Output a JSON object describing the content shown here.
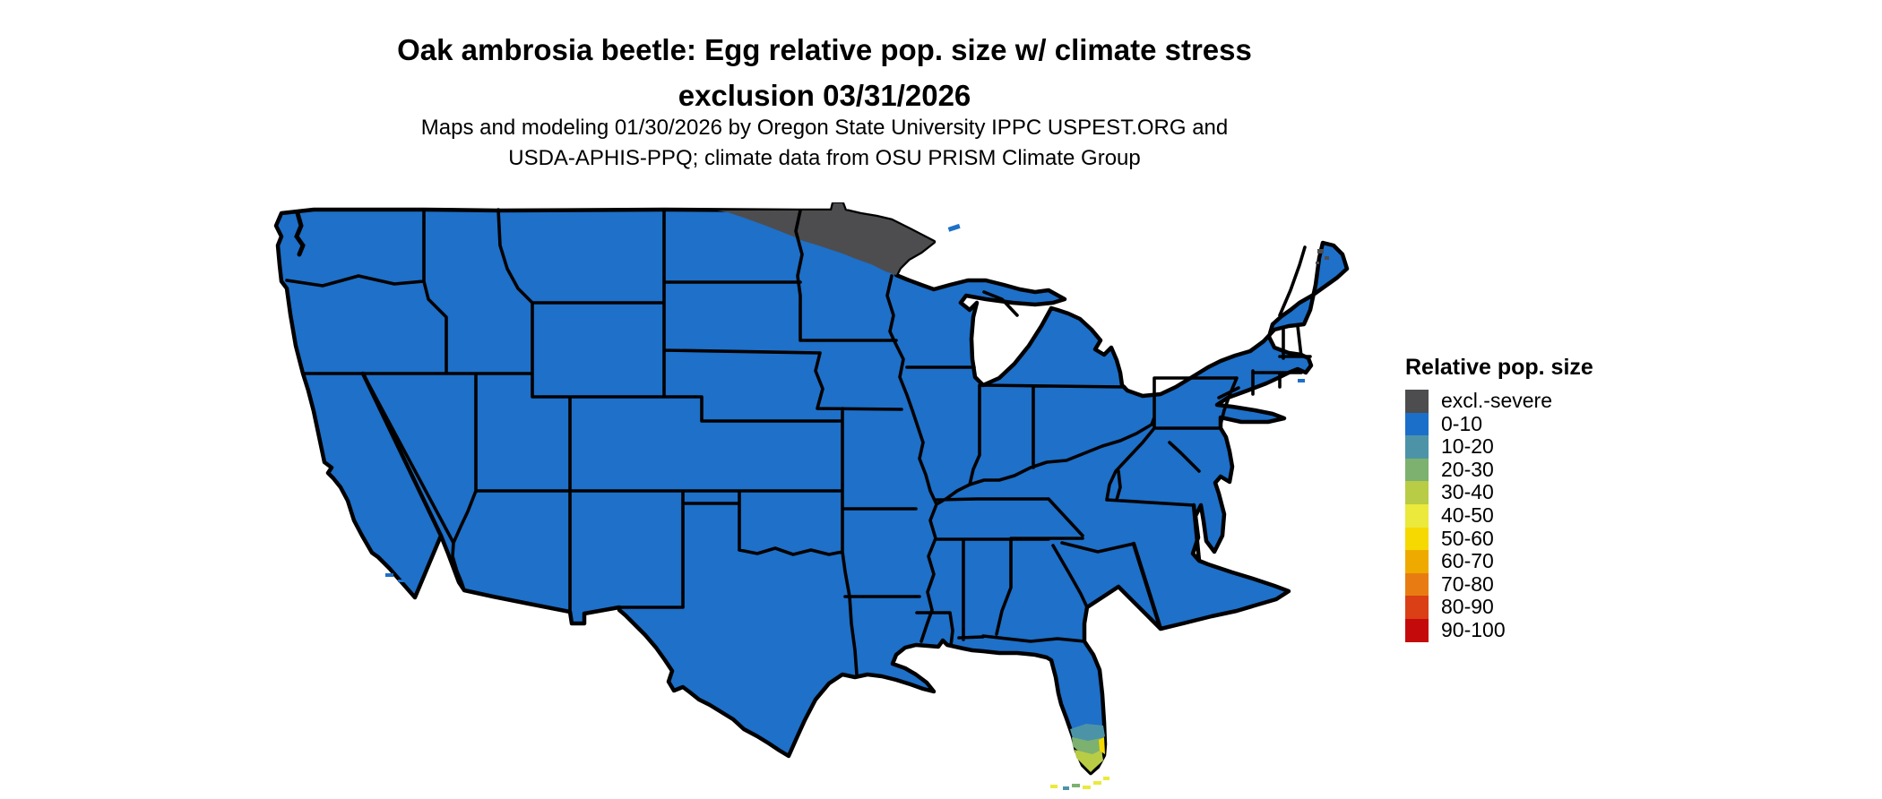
{
  "title": {
    "line1": "Oak ambrosia beetle: Egg relative pop. size w/ climate stress",
    "line2": "exclusion 03/31/2026"
  },
  "subtitle": {
    "line1": "Maps and modeling 01/30/2026 by Oregon State University IPPC USPEST.ORG and",
    "line2": "USDA-APHIS-PPQ; climate data from OSU PRISM Climate Group"
  },
  "legend": {
    "title": "Relative pop. size",
    "items": [
      {
        "label": "excl.-severe",
        "color": "#4D4D4F"
      },
      {
        "label": "0-10",
        "color": "#1C6FC9"
      },
      {
        "label": "10-20",
        "color": "#4D93A8"
      },
      {
        "label": "20-30",
        "color": "#7CB16F"
      },
      {
        "label": "30-40",
        "color": "#B9CC45"
      },
      {
        "label": "40-50",
        "color": "#EBE93C"
      },
      {
        "label": "50-60",
        "color": "#F6D900"
      },
      {
        "label": "60-70",
        "color": "#EFAA00"
      },
      {
        "label": "70-80",
        "color": "#E87C12"
      },
      {
        "label": "80-90",
        "color": "#DA3F16"
      },
      {
        "label": "90-100",
        "color": "#C40A0A"
      }
    ]
  },
  "map": {
    "description": "Contiguous United States choropleth",
    "base_fill": "#1E70C8",
    "border_color": "#000000",
    "background": "#FFFFFF",
    "exclusion_fill": "#4D4D4F",
    "exclusion_region": "northern Minnesota / northeastern North Dakota",
    "florida": {
      "teal_band": "#4D93A8",
      "green_band": "#7CB16F",
      "yellow_green_band": "#B9CC45",
      "yellow_patch": "#F6D900",
      "keys_yellow": "#EBE93C"
    }
  }
}
